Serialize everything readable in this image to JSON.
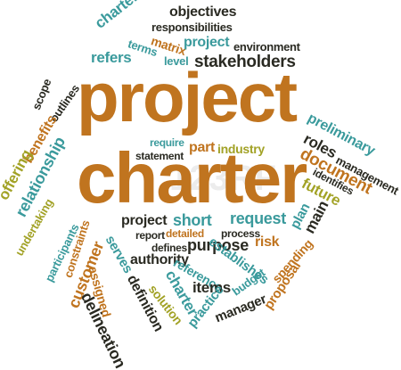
{
  "palette": {
    "orange": "#c0741f",
    "teal": "#3a9a9c",
    "dark": "#2a2a22",
    "olive": "#a2a226"
  },
  "watermark": "123RF",
  "words": {
    "project_main": "project",
    "charter_main": "charter",
    "objectives": "objectives",
    "responsibilities": "responsibilities",
    "charter_top": "charter",
    "matrix": "matrix",
    "project_top": "project",
    "environment": "environment",
    "terms": "terms",
    "refers": "refers",
    "level": "level",
    "stakeholders": "stakeholders",
    "scope": "scope",
    "outlines": "outlines",
    "benefits": "benefits",
    "preliminary": "preliminary",
    "roles": "roles",
    "management": "management",
    "document": "document",
    "identifies": "identifies",
    "future": "future",
    "offering": "offering",
    "relationship": "relationship",
    "require": "require",
    "statement": "statement",
    "part": "part",
    "industry": "industry",
    "undertaking": "undertaking",
    "participants": "participants",
    "constraints": "constraints",
    "customer": "customer",
    "assigned": "assigned",
    "delineation": "delineation",
    "project_mid": "project",
    "short": "short",
    "report": "report",
    "detailed": "detailed",
    "serves": "serves",
    "defines": "defines",
    "authority": "authority",
    "definition": "definition",
    "solution": "solution",
    "purpose": "purpose",
    "reference": "reference",
    "charter_low": "charter",
    "practice": "practice",
    "items": "items",
    "manager": "manager",
    "budget": "budget",
    "request": "request",
    "process": "process",
    "establishes": "establishes",
    "risk": "risk",
    "spending": "spending",
    "proposal": "proposal",
    "plan": "plan",
    "main": "main"
  }
}
